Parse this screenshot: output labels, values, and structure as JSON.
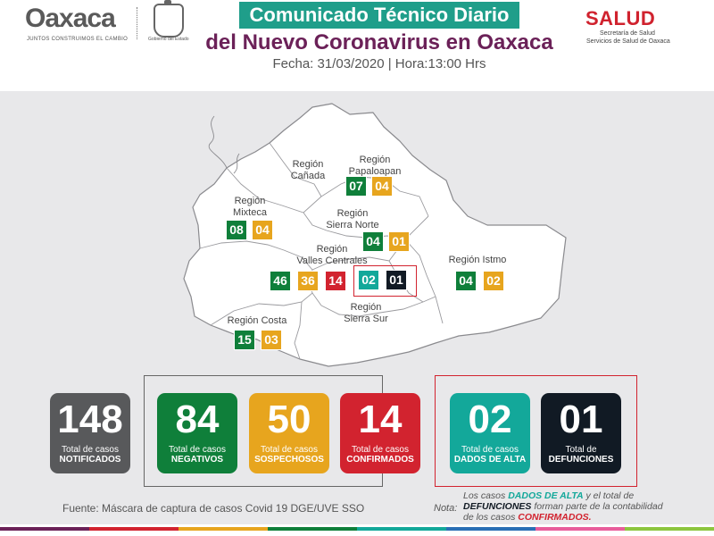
{
  "header": {
    "logo_word": "Oaxaca",
    "logo_tagline": "JUNTOS CONSTRUIMOS EL CAMBIO",
    "seal_caption": "Gobierno del Estado",
    "title_line1": "Comunicado Técnico Diario",
    "title_line2": "del Nuevo Coronavirus en Oaxaca",
    "date_line": "Fecha: 31/03/2020 | Hora:13:00 Hrs",
    "salud_word": "SALUD",
    "salud_sub1": "Secretaría de Salud",
    "salud_sub2": "Servicios de Salud de Oaxaca"
  },
  "regions": {
    "canada": {
      "name": "Región\nCañada"
    },
    "papaloapan": {
      "name": "Región\nPapaloapan",
      "green": "07",
      "orange": "04"
    },
    "mixteca": {
      "name": "Región\nMixteca",
      "green": "08",
      "orange": "04"
    },
    "sierra_norte": {
      "name": "Región\nSierra Norte",
      "green": "04",
      "orange": "01"
    },
    "valles": {
      "name": "Región\nValles Centrales",
      "green": "46",
      "orange": "36",
      "red": "14",
      "teal": "02",
      "dark": "01"
    },
    "istmo": {
      "name": "Región Istmo",
      "green": "04",
      "orange": "02"
    },
    "sierra_sur": {
      "name": "Región\nSierra Sur"
    },
    "costa": {
      "name": "Región Costa",
      "green": "15",
      "orange": "03"
    }
  },
  "totals": {
    "notificados": {
      "value": "148",
      "line1": "Total de casos",
      "line2": "NOTIFICADOS",
      "color": "#58595b"
    },
    "negativos": {
      "value": "84",
      "line1": "Total de casos",
      "line2": "NEGATIVOS",
      "color": "#0f7f3a"
    },
    "sospechosos": {
      "value": "50",
      "line1": "Total de casos",
      "line2": "SOSPECHOSOS",
      "color": "#e7a51e"
    },
    "confirmados": {
      "value": "14",
      "line1": "Total de casos",
      "line2": "CONFIRMADOS",
      "color": "#d2232f"
    },
    "alta": {
      "value": "02",
      "line1": "Total de casos",
      "line2": "DADOS DE ALTA",
      "color": "#13a89a"
    },
    "defunciones": {
      "value": "01",
      "line1": "Total de",
      "line2": "DEFUNCIONES",
      "color": "#111a24"
    }
  },
  "footer": {
    "fuente": "Fuente: Máscara de captura de casos Covid 19 DGE/UVE SSO",
    "nota_label": "Nota:",
    "nota_part1": "Los casos ",
    "nota_alta": "DADOS DE ALTA",
    "nota_part2": " y el total de ",
    "nota_def": "DEFUNCIONES",
    "nota_part3": " forman parte de la contabilidad de los casos ",
    "nota_conf": "CONFIRMADOS."
  },
  "colors": {
    "title_band": "#1f9e8a",
    "title2": "#6b2158",
    "salud": "#d0222e",
    "background": "#e8e8ea"
  }
}
